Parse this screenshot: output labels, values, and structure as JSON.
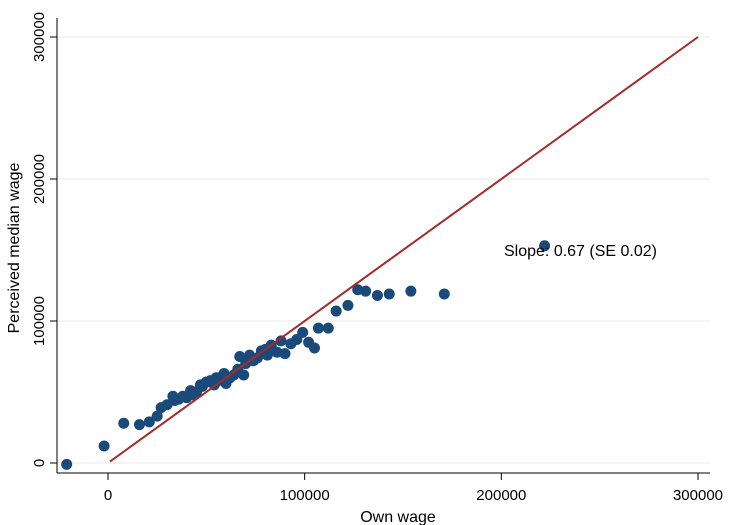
{
  "chart_data": {
    "type": "scatter",
    "title": "",
    "xlabel": "Own wage",
    "ylabel": "Perceived median wage",
    "xlim": [
      -25000,
      300000
    ],
    "ylim": [
      -5000,
      300000
    ],
    "x_ticks": [
      0,
      100000,
      200000,
      300000
    ],
    "y_ticks": [
      0,
      100000,
      200000,
      300000
    ],
    "x_tick_labels": [
      "0",
      "100000",
      "200000",
      "300000"
    ],
    "y_tick_labels": [
      "0",
      "100000",
      "200000",
      "300000"
    ],
    "grid": "horizontal",
    "annotation": "Slope:  0.67 (SE  0.02)",
    "colors": {
      "points": "#1a4a7a",
      "fit_line": "#a52a2a",
      "grid": "#eaeaea"
    },
    "series": [
      {
        "type": "scatter",
        "points": [
          [
            -21000,
            -1000
          ],
          [
            -2000,
            12000
          ],
          [
            8000,
            28000
          ],
          [
            16000,
            27000
          ],
          [
            21000,
            29000
          ],
          [
            25000,
            33000
          ],
          [
            27000,
            39000
          ],
          [
            30000,
            41000
          ],
          [
            33000,
            47000
          ],
          [
            34000,
            44000
          ],
          [
            36000,
            45000
          ],
          [
            38000,
            47000
          ],
          [
            40000,
            46000
          ],
          [
            42000,
            51000
          ],
          [
            43000,
            48000
          ],
          [
            45000,
            50000
          ],
          [
            47000,
            55000
          ],
          [
            48000,
            54000
          ],
          [
            50000,
            57000
          ],
          [
            52000,
            58000
          ],
          [
            54000,
            55000
          ],
          [
            55000,
            60000
          ],
          [
            56000,
            58000
          ],
          [
            58000,
            61000
          ],
          [
            59000,
            63000
          ],
          [
            60000,
            56000
          ],
          [
            62000,
            60000
          ],
          [
            64000,
            62000
          ],
          [
            66000,
            66000
          ],
          [
            67000,
            75000
          ],
          [
            69000,
            62000
          ],
          [
            70000,
            70000
          ],
          [
            72000,
            76000
          ],
          [
            74000,
            72000
          ],
          [
            76000,
            74000
          ],
          [
            78000,
            79000
          ],
          [
            80000,
            80000
          ],
          [
            81000,
            76000
          ],
          [
            83000,
            83000
          ],
          [
            84000,
            79000
          ],
          [
            86000,
            78000
          ],
          [
            88000,
            86000
          ],
          [
            90000,
            77000
          ],
          [
            93000,
            84000
          ],
          [
            96000,
            87000
          ],
          [
            99000,
            92000
          ],
          [
            102000,
            85000
          ],
          [
            105000,
            81000
          ],
          [
            107000,
            95000
          ],
          [
            112000,
            95000
          ],
          [
            116000,
            107000
          ],
          [
            122000,
            111000
          ],
          [
            127000,
            122000
          ],
          [
            131000,
            121000
          ],
          [
            137000,
            118000
          ],
          [
            143000,
            119000
          ],
          [
            154000,
            121000
          ],
          [
            171000,
            119000
          ],
          [
            222000,
            153000
          ]
        ]
      },
      {
        "type": "line",
        "points": [
          [
            1000,
            1000
          ],
          [
            300000,
            300000
          ]
        ]
      }
    ]
  }
}
